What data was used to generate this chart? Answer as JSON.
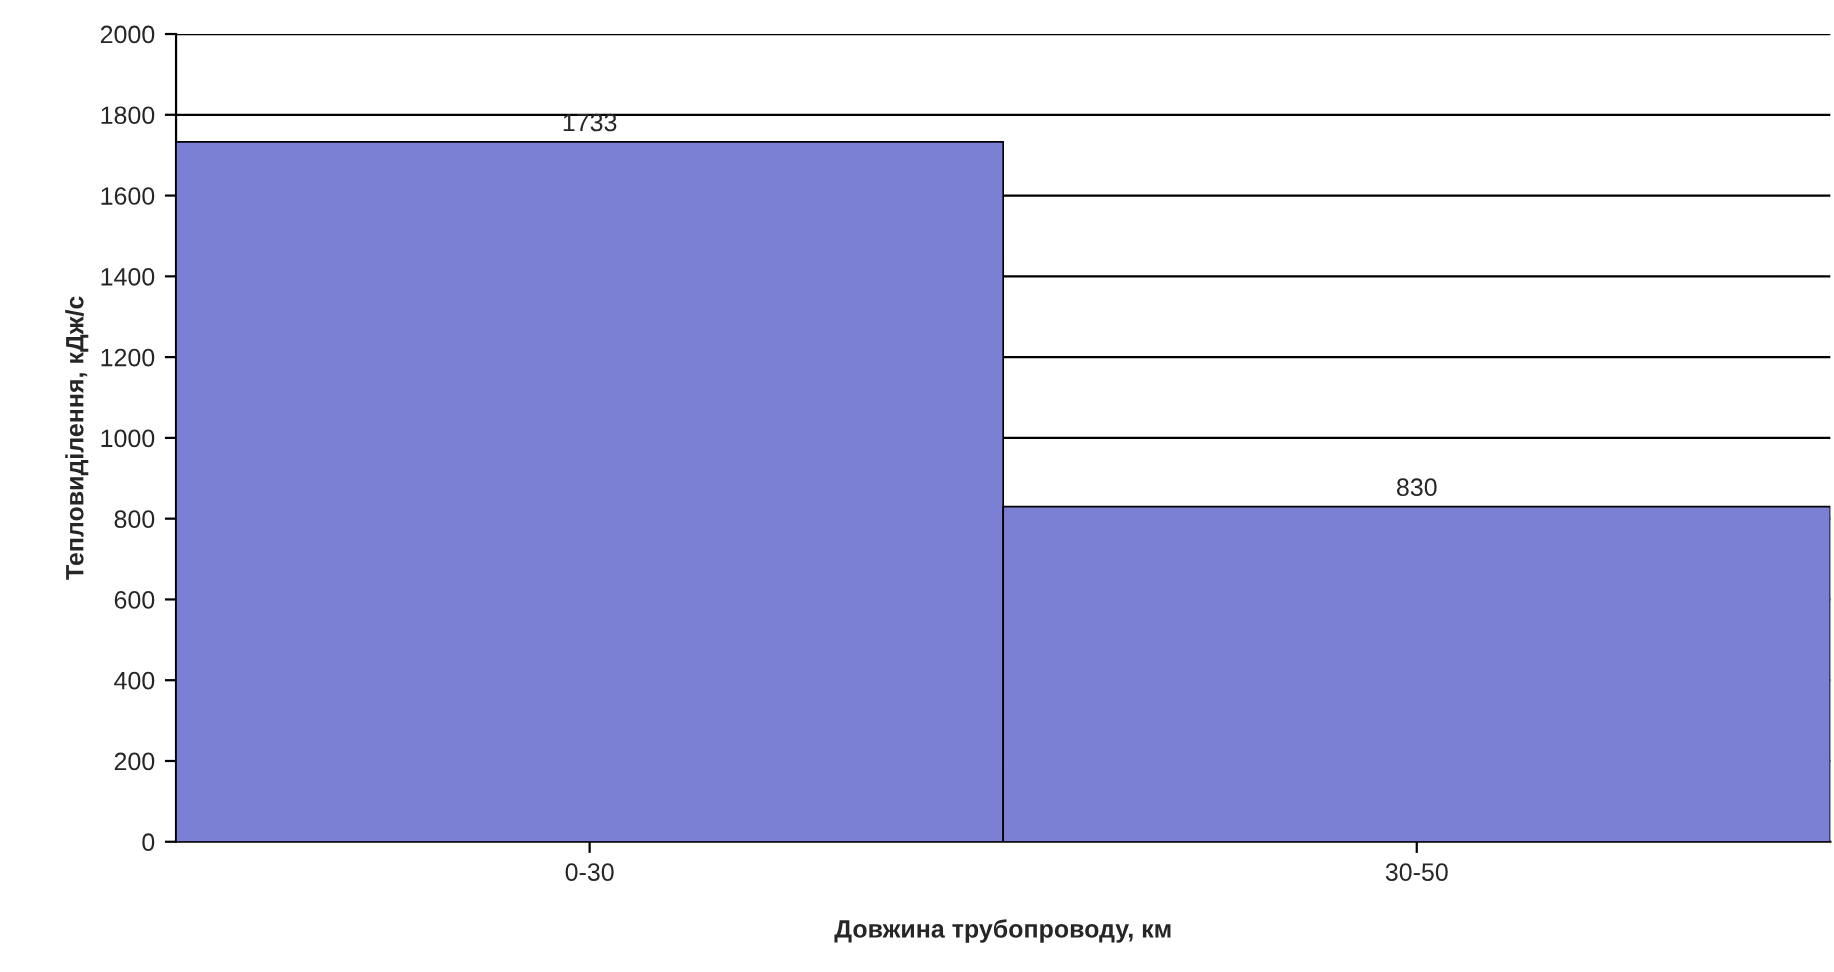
{
  "chart_data": {
    "type": "bar",
    "xlabel": "Довжина трубопроводу, км",
    "ylabel": "Тепловиділення, кДж/с",
    "categories": [
      "0-30",
      "30-50"
    ],
    "values": [
      1733,
      830
    ],
    "color": "#7c80d4",
    "ylim": [
      0,
      2000
    ],
    "yticks": [
      0,
      200,
      400,
      600,
      800,
      1000,
      1200,
      1400,
      1600,
      1800,
      2000
    ],
    "grid": "y",
    "data_labels": true
  }
}
